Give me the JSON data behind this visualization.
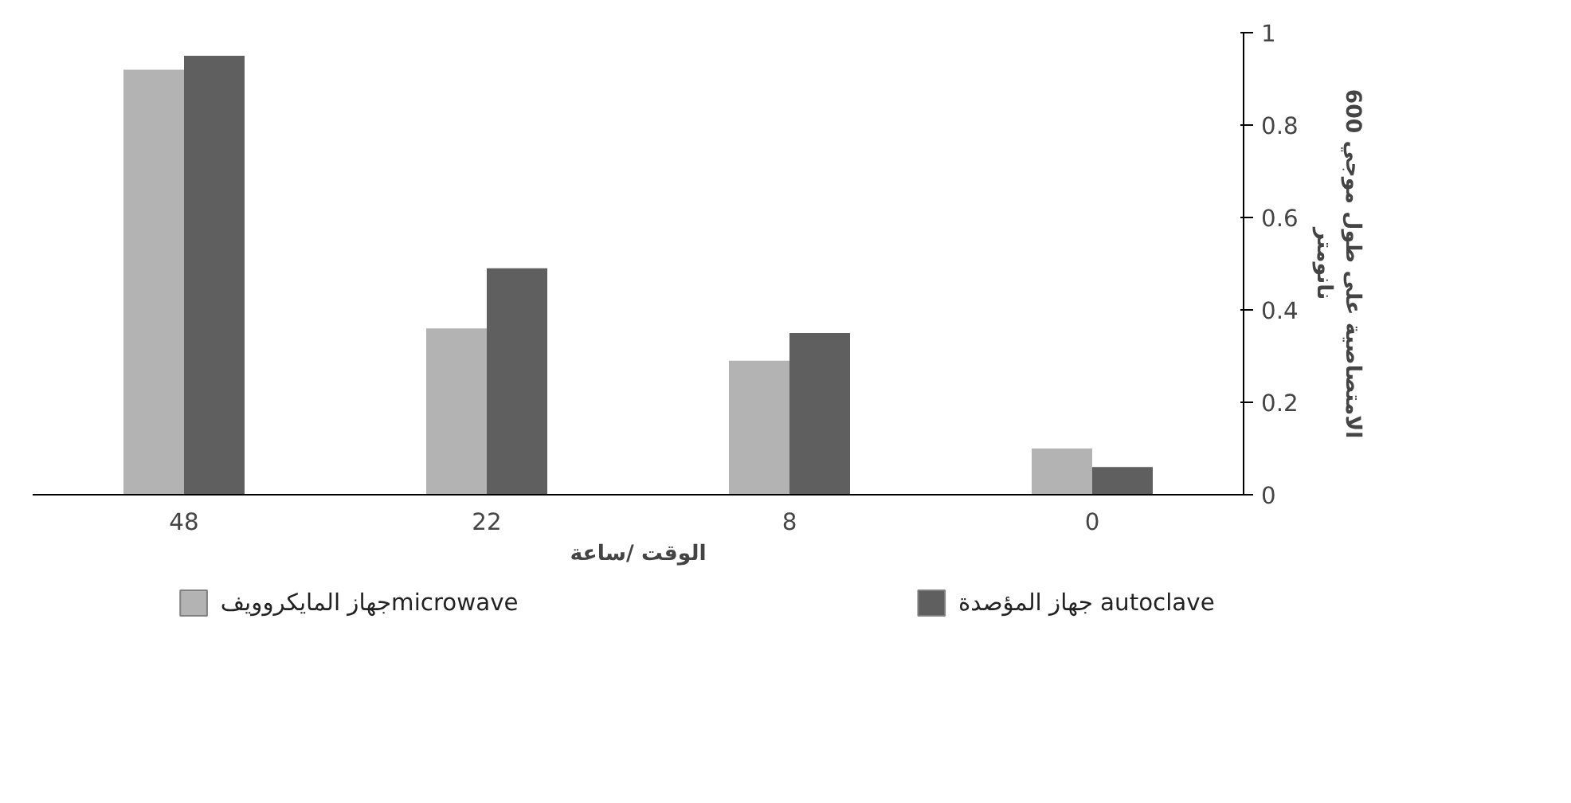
{
  "chart_data": {
    "type": "bar",
    "xlabel": "الوقت /ساعة",
    "ylabel": "الامتصاصية على طول موجي 600\nنانومتر",
    "categories": [
      "48",
      "22",
      "8",
      "0"
    ],
    "series": [
      {
        "name": "جهاز المايكروويفmicrowave",
        "color": "#b3b3b3",
        "values": [
          0.92,
          0.36,
          0.29,
          0.1
        ]
      },
      {
        "name": "جهاز المؤصدة autoclave",
        "color": "#5f5f5f",
        "values": [
          0.95,
          0.49,
          0.35,
          0.06
        ]
      }
    ],
    "ylim": [
      0,
      1
    ],
    "yticks": [
      0,
      0.2,
      0.4,
      0.6,
      0.8,
      1
    ],
    "grid": false,
    "legend": "bottom"
  }
}
